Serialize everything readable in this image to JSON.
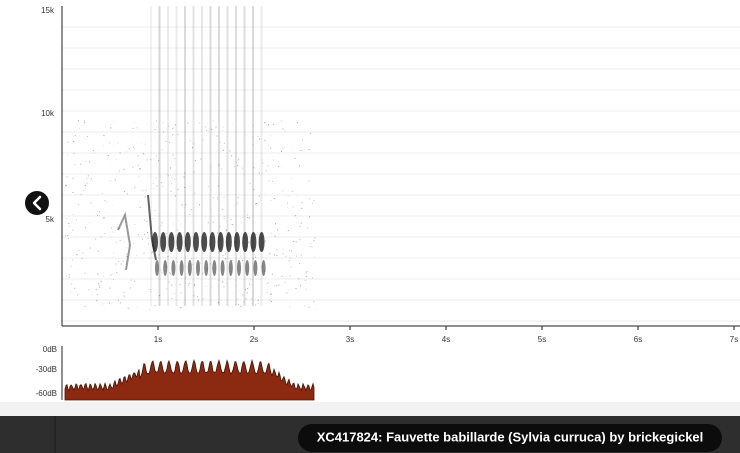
{
  "spectrogram": {
    "frequency_labels": [
      "15k",
      "10k",
      "5k"
    ],
    "time_labels": [
      "1s",
      "2s",
      "3s",
      "4s",
      "5s",
      "6s",
      "7s"
    ]
  },
  "amplitude": {
    "labels": [
      "0dB",
      "-30dB",
      "-60dB"
    ]
  },
  "caption": "XC417824: Fauvette babillarde (Sylvia curruca) by brickegickel"
}
